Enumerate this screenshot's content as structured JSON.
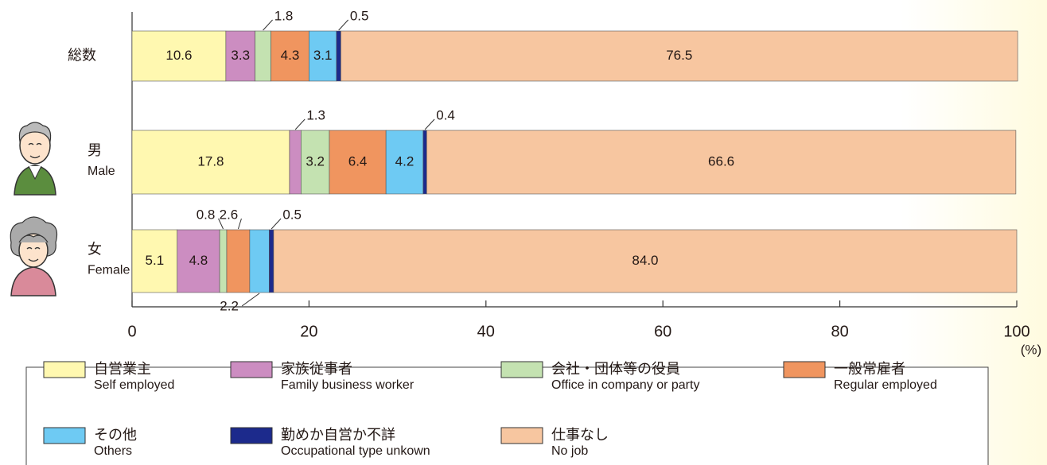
{
  "chart_data": {
    "type": "stacked-bar-horizontal",
    "categories": [
      [
        "総数"
      ],
      [
        "男",
        "Male"
      ],
      [
        "女",
        "Female"
      ]
    ],
    "series": [
      {
        "name": "自営業主",
        "name_en": "Self employed",
        "color": "#fff8b0",
        "values": [
          10.6,
          17.8,
          5.1
        ]
      },
      {
        "name": "家族従事者",
        "name_en": "Family business worker",
        "color": "#cc8dc1",
        "values": [
          3.3,
          1.3,
          4.8
        ]
      },
      {
        "name": "会社・団体等の役員",
        "name_en": "Office in company or party",
        "color": "#c4e2b1",
        "values": [
          1.8,
          3.2,
          0.8
        ]
      },
      {
        "name": "一般常雇者",
        "name_en": "Regular employed",
        "color": "#f0955f",
        "values": [
          4.3,
          6.4,
          2.6
        ]
      },
      {
        "name": "その他",
        "name_en": "Others",
        "color": "#6ecaf3",
        "values": [
          3.1,
          4.2,
          2.2
        ]
      },
      {
        "name": "勤めか自営か不詳",
        "name_en": "Occupational type unkown",
        "color": "#1c2a8c",
        "values": [
          0.5,
          0.4,
          0.5
        ]
      },
      {
        "name": "仕事なし",
        "name_en": "No job",
        "color": "#f7c6a0",
        "values": [
          76.5,
          66.6,
          84.0
        ],
        "value_labels": [
          "76.5",
          "66.6",
          "84.0"
        ]
      }
    ],
    "xlim": [
      0,
      100
    ],
    "xticks": [
      0,
      20,
      40,
      60,
      80,
      100
    ],
    "x_unit_label": "(%)"
  }
}
